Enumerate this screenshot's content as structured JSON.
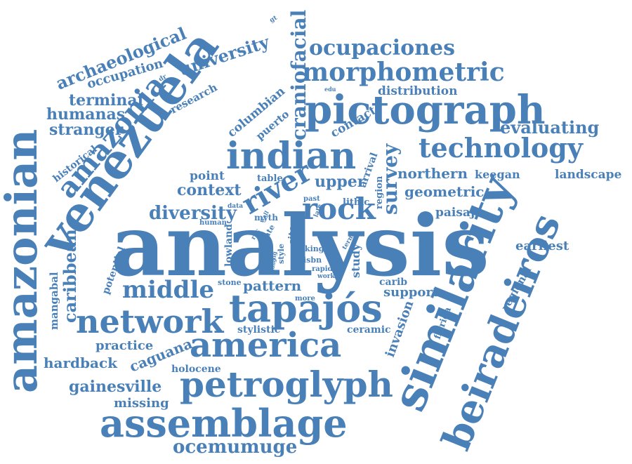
{
  "colors": {
    "word": "#4a80b8",
    "background": "#ffffff"
  },
  "words": {
    "analysis": "analysis",
    "venezuela": "venezuela",
    "amazonian": "amazonian",
    "similarity": "similarity",
    "beiradeiros": "beiradeiros",
    "pictograph": "pictograph",
    "petroglyph": "petroglyph",
    "assemblage": "assemblage",
    "tapajos": "tapajós",
    "america": "america",
    "network": "network",
    "indian": "indian",
    "amazonia": "amazonia",
    "morphometric": "morphometric",
    "technology": "technology",
    "ocupaciones": "ocupaciones",
    "craniofacial": "craniofacial",
    "rock": "rock",
    "river": "river",
    "survey": "survey",
    "middle": "middle",
    "archaeological": "archaeological",
    "university": "university",
    "occupation": "occupation",
    "terminal": "terminal",
    "humanas": "humanas",
    "stranger": "stranger",
    "research": "research",
    "columbian": "columbian",
    "puerto": "puerto",
    "historical": "historical",
    "distribution": "distribution",
    "contact": "contact",
    "evaluating": "evaluating",
    "point": "point",
    "context": "context",
    "diversity": "diversity",
    "table": "table",
    "upper": "upper",
    "arrival": "arrival",
    "region": "region",
    "northern": "northern",
    "keegan": "keegan",
    "landscape": "landscape",
    "geometric": "geometric",
    "lithic": "lithic",
    "paisaje": "paisaje",
    "caribbean": "caribbean",
    "mangabal": "mangabal",
    "potential": "potential",
    "lowland": "lowland",
    "earliest": "earliest",
    "regional": "regional",
    "pattern": "pattern",
    "stone": "stone",
    "study": "study",
    "carib": "carib",
    "support": "support",
    "invasion": "invasion",
    "florida": "florida",
    "stylistic": "stylistic",
    "ceramic": "ceramic",
    "practice": "practice",
    "caguana": "caguana",
    "hardback": "hardback",
    "holocene": "holocene",
    "gainesville": "gainesville",
    "missing": "missing",
    "ocemumuge": "ocemumuge",
    "human": "human",
    "data": "data",
    "myth": "myth",
    "site": "site",
    "king": "king",
    "isbn": "isbn",
    "rapid": "rapid",
    "work": "work",
    "more": "more",
    "style": "style",
    "date": "date",
    "past": "past",
    "late": "late",
    "term": "term",
    "roc": "roc",
    "wall": "wall",
    "fig": "fig",
    "long": "long",
    "edu": "edu",
    "gt": "gt",
    "dr": "dr"
  }
}
